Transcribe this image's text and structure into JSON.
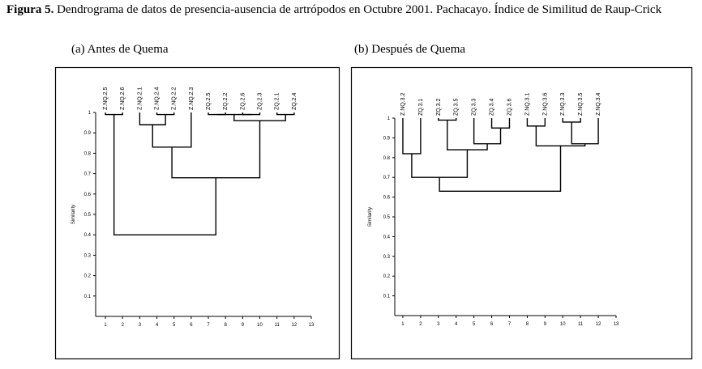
{
  "figure_label": "Figura 5.",
  "caption": "Dendrograma de datos de presencia-ausencia de artrópodos en Octubre 2001. Pachacayo. Índice de Similitud de Raup-Crick",
  "chart_data": [
    {
      "type": "dendrogram",
      "title": "(a) Antes de Quema",
      "y_label": "Similarity",
      "leaves": [
        "Z.NQ.2.5",
        "Z.NQ.2.6",
        "Z.NQ.2.1",
        "Z.NQ.2.4",
        "Z.NQ.2.2",
        "Z.NQ.2.3",
        "ZQ.2.5",
        "ZQ.2.2",
        "ZQ.2.6",
        "ZQ.2.3",
        "ZQ.2.1",
        "ZQ.2.4"
      ],
      "merges": [
        {
          "a": 0,
          "b": 1,
          "height": 0.99
        },
        {
          "a": 3,
          "b": 4,
          "height": 0.99
        },
        {
          "a": 2,
          "b": 13,
          "height": 0.94
        },
        {
          "a": 14,
          "b": 5,
          "height": 0.83
        },
        {
          "a": 6,
          "b": 7,
          "height": 0.99
        },
        {
          "a": 8,
          "b": 9,
          "height": 0.99
        },
        {
          "a": 16,
          "b": 17,
          "height": 0.99
        },
        {
          "a": 10,
          "b": 11,
          "height": 0.99
        },
        {
          "a": 18,
          "b": 19,
          "height": 0.96
        },
        {
          "a": 15,
          "b": 20,
          "height": 0.68
        },
        {
          "a": 12,
          "b": 21,
          "height": 0.4
        }
      ],
      "xlim": [
        0.5,
        13
      ],
      "xticks": [
        1,
        2,
        3,
        4,
        5,
        6,
        7,
        8,
        9,
        10,
        11,
        12,
        13
      ],
      "ylim": [
        0,
        1
      ],
      "yticks": [
        0.1,
        0.2,
        0.3,
        0.4,
        0.5,
        0.6,
        0.7,
        0.8,
        0.9,
        1
      ]
    },
    {
      "type": "dendrogram",
      "title": "(b) Después de Quema",
      "y_label": "Similarity",
      "leaves": [
        "Z.NQ.3.2",
        "ZQ.3.1",
        "ZQ.3.2",
        "ZQ.3.5",
        "ZQ.3.3",
        "ZQ.3.4",
        "ZQ.3.6",
        "Z.NQ.3.1",
        "Z.NQ.3.6",
        "Z.NQ.3.3",
        "Z.NQ.3.5",
        "Z.NQ.3.4"
      ],
      "merges": [
        {
          "a": 0,
          "b": 1,
          "height": 0.82
        },
        {
          "a": 2,
          "b": 3,
          "height": 0.99
        },
        {
          "a": 5,
          "b": 6,
          "height": 0.95
        },
        {
          "a": 4,
          "b": 14,
          "height": 0.87
        },
        {
          "a": 13,
          "b": 15,
          "height": 0.84
        },
        {
          "a": 12,
          "b": 16,
          "height": 0.7
        },
        {
          "a": 7,
          "b": 8,
          "height": 0.96
        },
        {
          "a": 9,
          "b": 10,
          "height": 0.98
        },
        {
          "a": 19,
          "b": 11,
          "height": 0.87
        },
        {
          "a": 18,
          "b": 20,
          "height": 0.86
        },
        {
          "a": 17,
          "b": 21,
          "height": 0.63
        }
      ],
      "xlim": [
        0.5,
        13
      ],
      "xticks": [
        1,
        2,
        3,
        4,
        5,
        6,
        7,
        8,
        9,
        10,
        11,
        12,
        13
      ],
      "ylim": [
        0,
        1
      ],
      "yticks": [
        0.1,
        0.2,
        0.3,
        0.4,
        0.5,
        0.6,
        0.7,
        0.8,
        0.9,
        1
      ]
    }
  ]
}
